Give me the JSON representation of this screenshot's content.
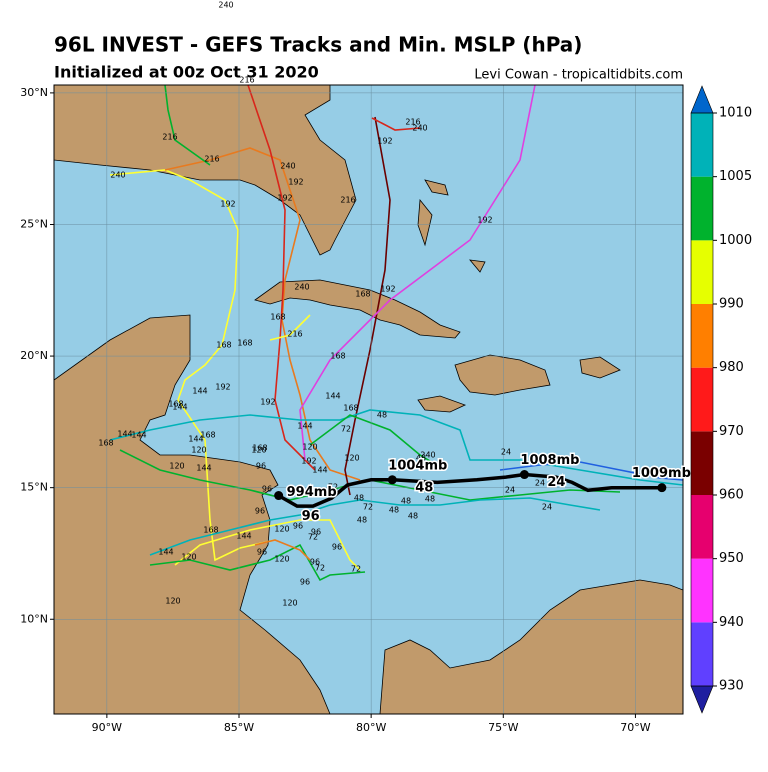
{
  "header": {
    "title": "96L INVEST - GEFS Tracks and Min. MSLP (hPa)",
    "subtitle": "Initialized at 00z Oct 31 2020",
    "credit": "Levi Cowan - tropicaltidbits.com",
    "stray_label": "240"
  },
  "map": {
    "xlim": [
      -92,
      -68.2
    ],
    "ylim": [
      6.4,
      30.3
    ],
    "xticks": [
      {
        "value": -90,
        "label": "90°W"
      },
      {
        "value": -85,
        "label": "85°W"
      },
      {
        "value": -80,
        "label": "80°W"
      },
      {
        "value": -75,
        "label": "75°W"
      },
      {
        "value": -70,
        "label": "70°W"
      }
    ],
    "yticks": [
      {
        "value": 10,
        "label": "10°N"
      },
      {
        "value": 15,
        "label": "15°N"
      },
      {
        "value": 20,
        "label": "20°N"
      },
      {
        "value": 25,
        "label": "25°N"
      },
      {
        "value": 30,
        "label": "30°N"
      }
    ],
    "grid": true
  },
  "mean_track": {
    "color": "#000000",
    "lon": [
      -83.5,
      -82.8,
      -82.2,
      -81.5,
      -80.9,
      -80.0,
      -79.2,
      -77.5,
      -76.0,
      -74.9,
      -74.2,
      -73.0,
      -72.4,
      -71.8,
      -70.9,
      -70.0,
      -69.0
    ],
    "lat": [
      14.7,
      14.3,
      14.3,
      14.6,
      15.1,
      15.3,
      15.3,
      15.2,
      15.3,
      15.4,
      15.5,
      15.4,
      15.2,
      14.9,
      15.0,
      15.0,
      15.0
    ],
    "points": [
      {
        "lon": -83.5,
        "lat": 14.7,
        "pressure": "994mb",
        "hour": "96"
      },
      {
        "lon": -79.2,
        "lat": 15.3,
        "pressure": "1004mb",
        "hour": "48"
      },
      {
        "lon": -74.2,
        "lat": 15.5,
        "pressure": "1008mb",
        "hour": "24"
      },
      {
        "lon": -69.0,
        "lat": 15.0,
        "pressure": "1009mb",
        "hour": null
      }
    ]
  },
  "track_labels": [
    "216",
    "216",
    "216",
    "216",
    "216",
    "216",
    "240",
    "240",
    "240",
    "240",
    "240",
    "192",
    "192",
    "192",
    "192",
    "192",
    "192",
    "192",
    "192",
    "192",
    "168",
    "168",
    "168",
    "168",
    "168",
    "168",
    "168",
    "168",
    "168",
    "168",
    "168",
    "144",
    "144",
    "144",
    "144",
    "144",
    "144",
    "144",
    "144",
    "144",
    "144",
    "144",
    "120",
    "120",
    "120",
    "120",
    "120",
    "120",
    "120",
    "120",
    "120",
    "120",
    "96",
    "96",
    "96",
    "96",
    "96",
    "96",
    "96",
    "96",
    "96",
    "72",
    "72",
    "72",
    "72",
    "72",
    "72",
    "48",
    "48",
    "48",
    "48",
    "48",
    "48",
    "48",
    "48",
    "24",
    "24",
    "24",
    "24"
  ],
  "colorbar": {
    "levels": [
      930,
      940,
      950,
      960,
      970,
      980,
      990,
      1000,
      1005,
      1010
    ],
    "colors": [
      "#6040ff",
      "#ff33ff",
      "#e6006e",
      "#7a0000",
      "#ff1a1a",
      "#ff7f00",
      "#e6ff00",
      "#00b22d",
      "#00b2b8"
    ],
    "under_color": "#1f1fa0",
    "over_color": "#0066cc"
  }
}
